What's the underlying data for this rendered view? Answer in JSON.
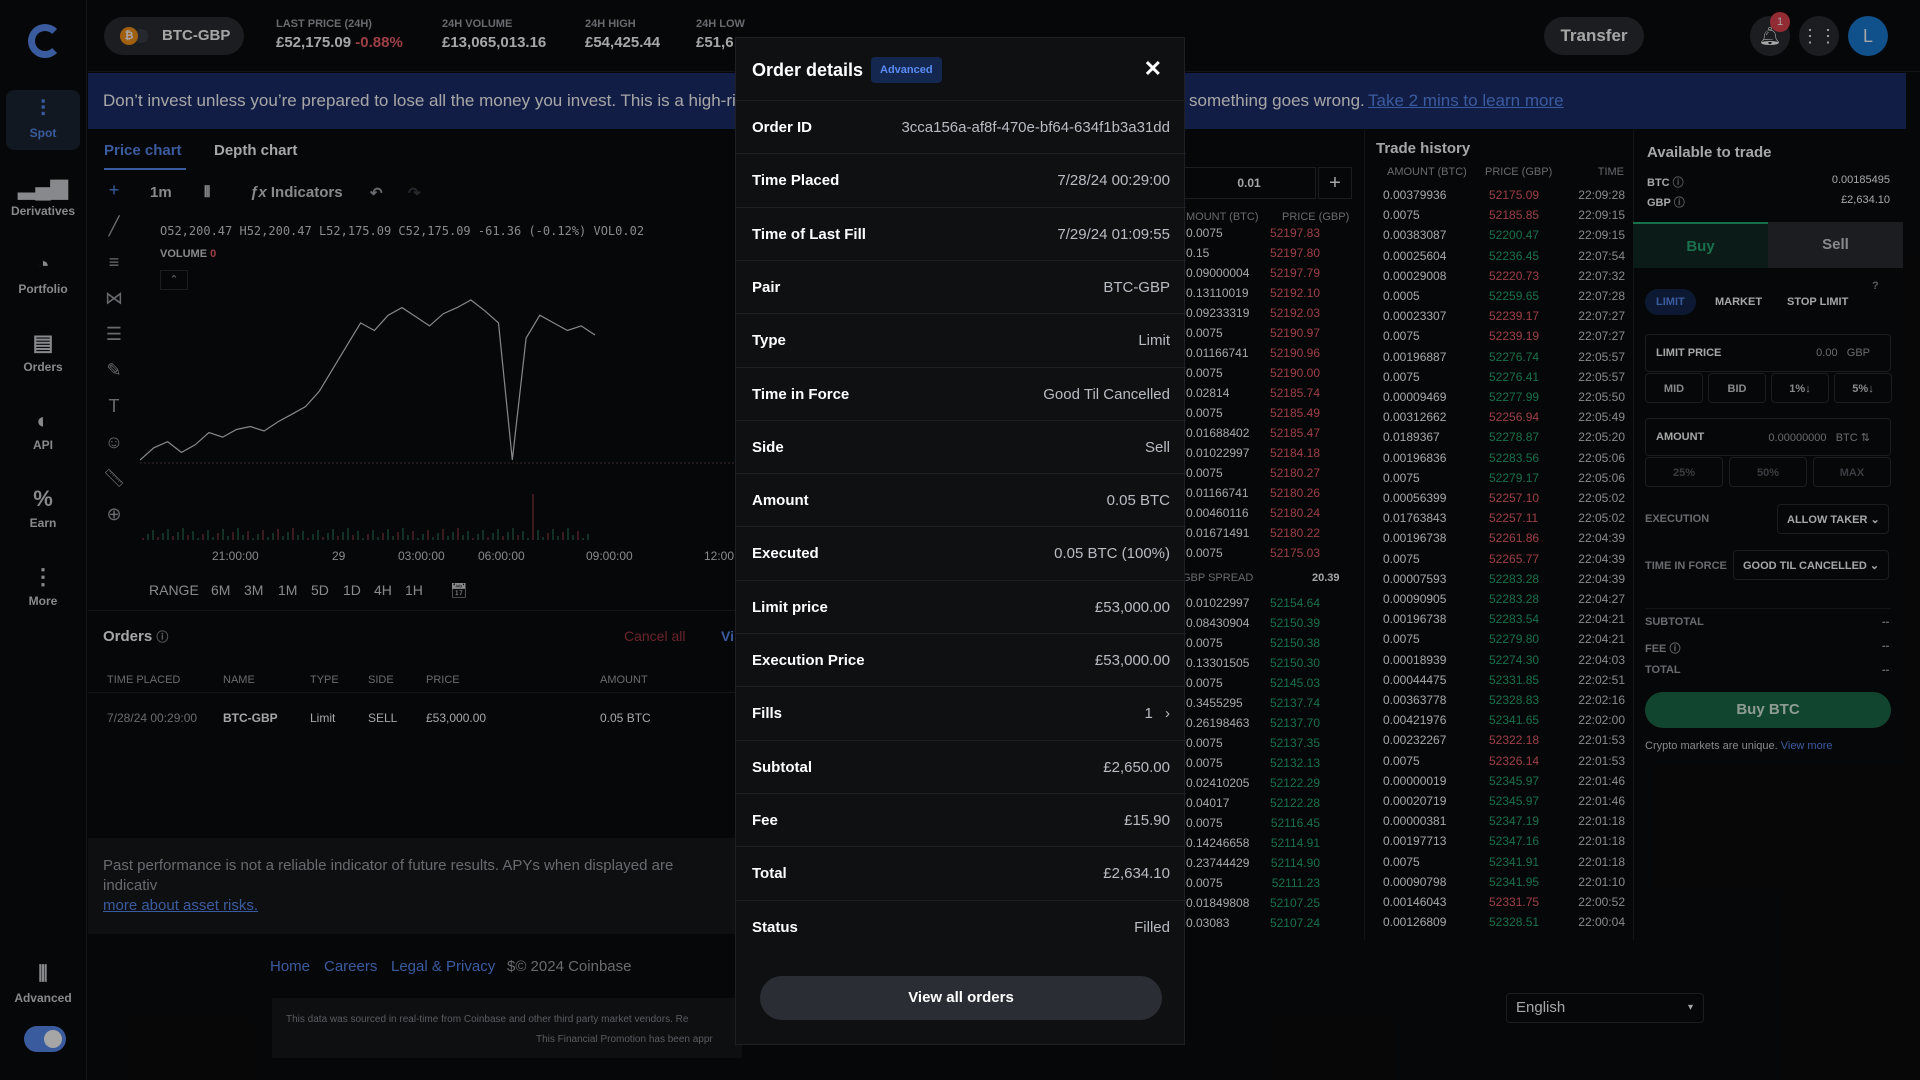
{
  "sidebar": {
    "items": [
      {
        "label": "Spot",
        "icon": "spot-icon"
      },
      {
        "label": "Derivatives",
        "icon": "bar-chart-icon"
      },
      {
        "label": "Portfolio",
        "icon": "pie-icon"
      },
      {
        "label": "Orders",
        "icon": "document-icon"
      },
      {
        "label": "API",
        "icon": "api-icon"
      },
      {
        "label": "Earn",
        "icon": "percent-icon"
      },
      {
        "label": "More",
        "icon": "more-icon"
      }
    ],
    "advanced_label": "Advanced"
  },
  "topbar": {
    "pair": "BTC-GBP",
    "last_price_label": "LAST PRICE (24H)",
    "last_price": "£52,175.09",
    "change": "-0.88%",
    "volume_label": "24H VOLUME",
    "volume": "£13,065,013.16",
    "high_label": "24H HIGH",
    "high": "£54,425.44",
    "low_label": "24H LOW",
    "low": "£51,6",
    "transfer": "Transfer",
    "notif_count": "1",
    "avatar": "L"
  },
  "banner": {
    "text": "Don’t invest unless you’re prepared to lose all the money you invest. This is a high-ri",
    "text2": "something goes wrong.",
    "link": "Take 2 mins to learn more"
  },
  "chart": {
    "tabs": [
      "Price chart",
      "Depth chart"
    ],
    "interval": "1m",
    "indicators": "Indicators",
    "ohlc": "O52,200.47 H52,200.47 L52,175.09 C52,175.09 -61.36 (-0.12%) VOL0.02",
    "volume_label": "VOLUME",
    "volume_val": "0",
    "xticks": [
      "21:00:00",
      "29",
      "03:00:00",
      "06:00:00",
      "09:00:00",
      "12:00"
    ],
    "range_label": "RANGE",
    "ranges": [
      "6M",
      "3M",
      "1M",
      "5D",
      "1D",
      "4H",
      "1H"
    ]
  },
  "chart_data": {
    "type": "line",
    "title": "BTC-GBP 1m",
    "series": [
      {
        "values": [
          52150,
          52158,
          52162,
          52155,
          52160,
          52168,
          52165,
          52170,
          52172,
          52169,
          52175,
          52180,
          52185,
          52195,
          52210,
          52225,
          52240,
          52235,
          52245,
          52250,
          52244,
          52238,
          52246,
          52250,
          52255,
          52248,
          52240,
          52150,
          52230,
          52245,
          52240,
          52235,
          52238,
          52232
        ]
      }
    ]
  },
  "orders": {
    "title": "Orders",
    "cancel_all": "Cancel all",
    "view": "Vi",
    "headers": [
      "TIME PLACED",
      "NAME",
      "TYPE",
      "SIDE",
      "PRICE",
      "AMOUNT"
    ],
    "rows": [
      [
        "7/28/24 00:29:00",
        "BTC-GBP",
        "Limit",
        "SELL",
        "£53,000.00",
        "0.05 BTC"
      ]
    ]
  },
  "disclaimer": {
    "text": "Past performance is not a reliable indicator of future results. APYs when displayed are indicativ",
    "link": "more about asset risks."
  },
  "footer": {
    "links": [
      "Home",
      "Careers",
      "Legal & Privacy"
    ],
    "copyright": "$© 2024 Coinbase",
    "source": "This data was sourced in real-time from Coinbase and other third party market vendors. Re",
    "source2": "This Financial Promotion has been appr",
    "language": "English"
  },
  "orderbook": {
    "step": "0.01",
    "headers": [
      "MOUNT (BTC)",
      "PRICE (GBP)"
    ],
    "spread_label": "GBP SPREAD",
    "spread": "20.39",
    "asks": [
      [
        "0.0075",
        "52197.83"
      ],
      [
        "0.15",
        "52197.80"
      ],
      [
        "0.09000004",
        "52197.79"
      ],
      [
        "0.13110019",
        "52192.10"
      ],
      [
        "0.09233319",
        "52192.03"
      ],
      [
        "0.0075",
        "52190.97"
      ],
      [
        "0.01166741",
        "52190.96"
      ],
      [
        "0.0075",
        "52190.00"
      ],
      [
        "0.02814",
        "52185.74"
      ],
      [
        "0.0075",
        "52185.49"
      ],
      [
        "0.01688402",
        "52185.47"
      ],
      [
        "0.01022997",
        "52184.18"
      ],
      [
        "0.0075",
        "52180.27"
      ],
      [
        "0.01166741",
        "52180.26"
      ],
      [
        "0.00460116",
        "52180.24"
      ],
      [
        "0.01671491",
        "52180.22"
      ],
      [
        "0.0075",
        "52175.03"
      ]
    ],
    "bids": [
      [
        "0.01022997",
        "52154.64"
      ],
      [
        "0.08430904",
        "52150.39"
      ],
      [
        "0.0075",
        "52150.38"
      ],
      [
        "0.13301505",
        "52150.30"
      ],
      [
        "0.0075",
        "52145.03"
      ],
      [
        "0.3455295",
        "52137.74"
      ],
      [
        "0.26198463",
        "52137.70"
      ],
      [
        "0.0075",
        "52137.35"
      ],
      [
        "0.0075",
        "52132.13"
      ],
      [
        "0.02410205",
        "52122.29"
      ],
      [
        "0.04017",
        "52122.28"
      ],
      [
        "0.0075",
        "52116.45"
      ],
      [
        "0.14246658",
        "52114.91"
      ],
      [
        "0.23744429",
        "52114.90"
      ],
      [
        "0.0075",
        "52111.23"
      ],
      [
        "0.01849808",
        "52107.25"
      ],
      [
        "0.03083",
        "52107.24"
      ]
    ]
  },
  "trades": {
    "title": "Trade history",
    "headers": [
      "AMOUNT (BTC)",
      "PRICE (GBP)",
      "TIME"
    ],
    "rows": [
      [
        "0.00379936",
        "52175.09",
        "22:09:28",
        "s"
      ],
      [
        "0.0075",
        "52185.85",
        "22:09:15",
        "s"
      ],
      [
        "0.00383087",
        "52200.47",
        "22:09:15",
        "b"
      ],
      [
        "0.00025604",
        "52236.45",
        "22:07:54",
        "b"
      ],
      [
        "0.00029008",
        "52220.73",
        "22:07:32",
        "s"
      ],
      [
        "0.0005",
        "52259.65",
        "22:07:28",
        "b"
      ],
      [
        "0.00023307",
        "52239.17",
        "22:07:27",
        "s"
      ],
      [
        "0.0075",
        "52239.19",
        "22:07:27",
        "s"
      ],
      [
        "0.00196887",
        "52276.74",
        "22:05:57",
        "b"
      ],
      [
        "0.0075",
        "52276.41",
        "22:05:57",
        "b"
      ],
      [
        "0.00009469",
        "52277.99",
        "22:05:50",
        "b"
      ],
      [
        "0.00312662",
        "52256.94",
        "22:05:49",
        "s"
      ],
      [
        "0.0189367",
        "52278.87",
        "22:05:20",
        "b"
      ],
      [
        "0.00196836",
        "52283.56",
        "22:05:06",
        "b"
      ],
      [
        "0.0075",
        "52279.17",
        "22:05:06",
        "b"
      ],
      [
        "0.00056399",
        "52257.10",
        "22:05:02",
        "s"
      ],
      [
        "0.01763843",
        "52257.11",
        "22:05:02",
        "s"
      ],
      [
        "0.00196738",
        "52261.86",
        "22:04:39",
        "s"
      ],
      [
        "0.0075",
        "52265.77",
        "22:04:39",
        "s"
      ],
      [
        "0.00007593",
        "52283.28",
        "22:04:39",
        "b"
      ],
      [
        "0.00090905",
        "52283.28",
        "22:04:27",
        "b"
      ],
      [
        "0.00196738",
        "52283.54",
        "22:04:21",
        "b"
      ],
      [
        "0.0075",
        "52279.80",
        "22:04:21",
        "b"
      ],
      [
        "0.00018939",
        "52274.30",
        "22:04:03",
        "b"
      ],
      [
        "0.00044475",
        "52331.85",
        "22:02:51",
        "b"
      ],
      [
        "0.00363778",
        "52328.83",
        "22:02:16",
        "b"
      ],
      [
        "0.00421976",
        "52341.65",
        "22:02:00",
        "b"
      ],
      [
        "0.00232267",
        "52322.18",
        "22:01:53",
        "s"
      ],
      [
        "0.0075",
        "52326.14",
        "22:01:53",
        "s"
      ],
      [
        "0.00000019",
        "52345.97",
        "22:01:46",
        "b"
      ],
      [
        "0.00020719",
        "52345.97",
        "22:01:46",
        "b"
      ],
      [
        "0.00000381",
        "52347.19",
        "22:01:18",
        "b"
      ],
      [
        "0.00197713",
        "52347.16",
        "22:01:18",
        "b"
      ],
      [
        "0.0075",
        "52341.91",
        "22:01:18",
        "b"
      ],
      [
        "0.00090798",
        "52341.95",
        "22:01:10",
        "b"
      ],
      [
        "0.00146043",
        "52331.75",
        "22:00:52",
        "s"
      ],
      [
        "0.00126809",
        "52328.51",
        "22:00:04",
        "b"
      ]
    ]
  },
  "trade_panel": {
    "title": "Available to trade",
    "btc_label": "BTC",
    "btc": "0.00185495",
    "gbp_label": "GBP",
    "gbp": "£2,634.10",
    "buy": "Buy",
    "sell": "Sell",
    "types": [
      "LIMIT",
      "MARKET",
      "STOP LIMIT"
    ],
    "limit_label": "LIMIT PRICE",
    "limit_val": "0.00",
    "limit_unit": "GBP",
    "price_btns": [
      "MID",
      "BID",
      "1%↓",
      "5%↓"
    ],
    "amount_label": "AMOUNT",
    "amount_val": "0.00000000",
    "amount_unit": "BTC ⇅",
    "pct_btns": [
      "25%",
      "50%",
      "MAX"
    ],
    "execution_label": "EXECUTION",
    "execution": "ALLOW TAKER",
    "tif_label": "TIME IN FORCE",
    "tif": "GOOD TIL CANCELLED",
    "subtotal_label": "SUBTOTAL",
    "fee_label": "FEE",
    "total_label": "TOTAL",
    "dash": "--",
    "buy_btn": "Buy BTC",
    "note": "Crypto markets are unique.",
    "note_link": "View more"
  },
  "modal": {
    "title": "Order details",
    "badge": "Advanced",
    "rows": [
      [
        "Order ID",
        "3cca156a-af8f-470e-bf64-634f1b3a31dd"
      ],
      [
        "Time Placed",
        "7/28/24 00:29:00"
      ],
      [
        "Time of Last Fill",
        "7/29/24 01:09:55"
      ],
      [
        "Pair",
        "BTC-GBP"
      ],
      [
        "Type",
        "Limit"
      ],
      [
        "Time in Force",
        "Good Til Cancelled"
      ],
      [
        "Side",
        "Sell"
      ],
      [
        "Amount",
        "0.05 BTC"
      ],
      [
        "Executed",
        "0.05 BTC (100%)"
      ],
      [
        "Limit price",
        "£53,000.00"
      ],
      [
        "Execution Price",
        "£53,000.00"
      ],
      [
        "Fills",
        "1"
      ],
      [
        "Subtotal",
        "£2,650.00"
      ],
      [
        "Fee",
        "£15.90"
      ],
      [
        "Total",
        "£2,634.10"
      ],
      [
        "Status",
        "Filled"
      ]
    ],
    "view_all": "View all orders"
  }
}
